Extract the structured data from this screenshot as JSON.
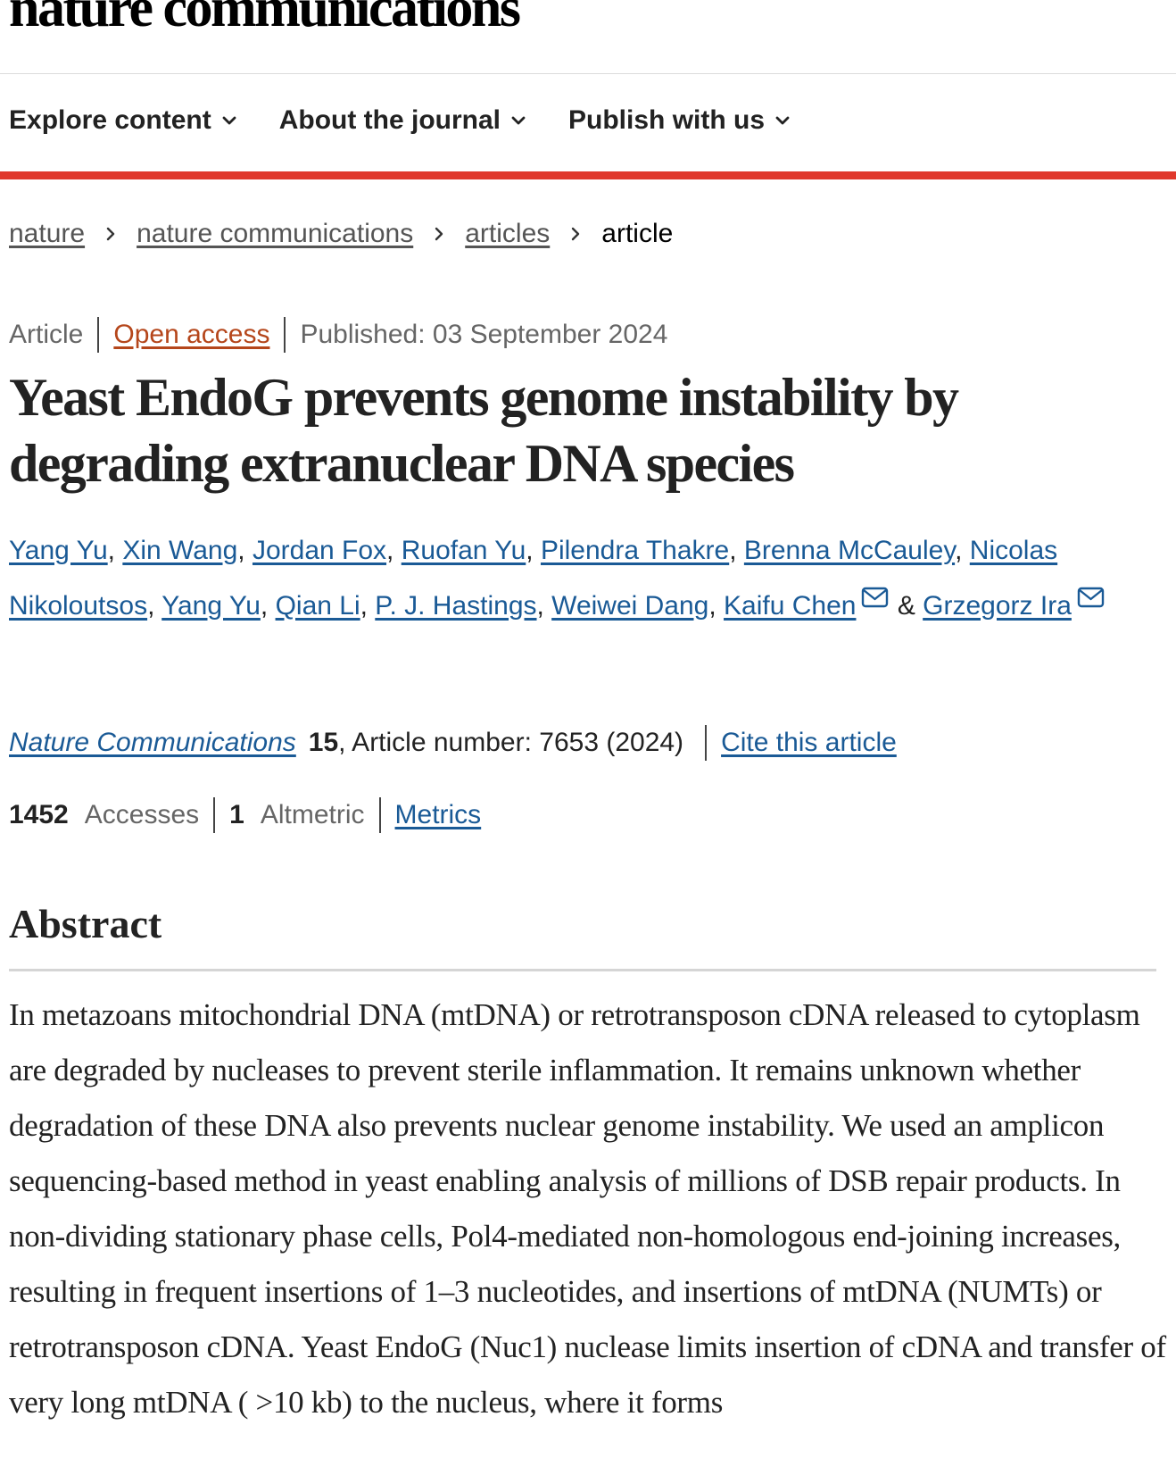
{
  "header": {
    "logo": "nature communications",
    "nav": [
      {
        "label": "Explore content"
      },
      {
        "label": "About the journal"
      },
      {
        "label": "Publish with us"
      }
    ]
  },
  "breadcrumb": {
    "items": [
      "nature",
      "nature communications",
      "articles"
    ],
    "current": "article"
  },
  "meta": {
    "type": "Article",
    "access": "Open access",
    "published": "Published: 03 September 2024"
  },
  "title": "Yeast EndoG prevents genome instability by degrading extranuclear DNA species",
  "authors": {
    "list": [
      "Yang Yu",
      "Xin Wang",
      "Jordan Fox",
      "Ruofan Yu",
      "Pilendra Thakre",
      "Brenna McCauley",
      "Nicolas Nikoloutsos",
      "Yang Yu",
      "Qian Li",
      "P. J. Hastings",
      "Weiwei Dang",
      "Kaifu Chen"
    ],
    "separator": ", ",
    "ampersand": "&",
    "last": "Grzegorz Ira"
  },
  "citation": {
    "journal": "Nature Communications",
    "volume": "15",
    "article_number": ", Article number: 7653 (2024)",
    "cite": "Cite this article"
  },
  "stats": {
    "accesses_count": "1452",
    "accesses_label": "Accesses",
    "altmetric_count": "1",
    "altmetric_label": "Altmetric",
    "metrics": "Metrics"
  },
  "abstract": {
    "heading": "Abstract",
    "text": "In metazoans mitochondrial DNA (mtDNA) or retrotransposon cDNA released to cytoplasm are degraded by nucleases to prevent sterile inflammation. It remains unknown whether degradation of these DNA also prevents nuclear genome instability. We used an amplicon sequencing-based method in yeast enabling analysis of millions of DSB repair products. In non-dividing stationary phase cells, Pol4-mediated non-homologous end-joining increases, resulting in frequent insertions of 1–3 nucleotides, and insertions of mtDNA (NUMTs) or retrotransposon cDNA. Yeast EndoG (Nuc1) nuclease limits insertion of cDNA and transfer of very long mtDNA ( >10 kb) to the nucleus, where it forms"
  },
  "colors": {
    "accent_bar": "#e0382c",
    "link": "#1a5a96",
    "open_access": "#b5461b"
  },
  "icons": {
    "nav": "chevron-down-icon",
    "breadcrumb": "chevron-right-icon",
    "corresponding_author": "mail-icon"
  }
}
